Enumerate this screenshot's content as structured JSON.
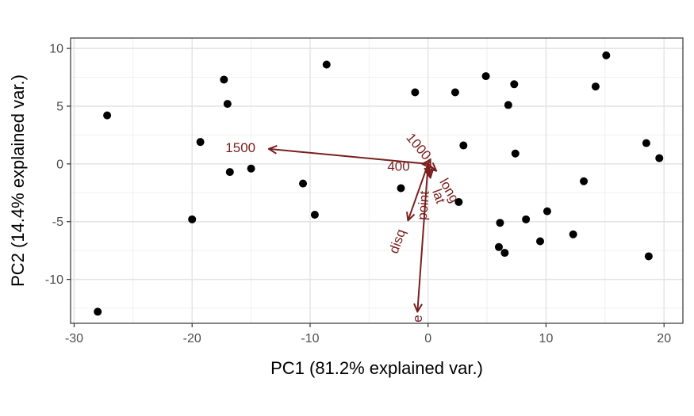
{
  "chart_data": {
    "type": "scatter",
    "title": "",
    "xlabel": "PC1 (81.2% explained var.)",
    "ylabel": "PC2 (14.4% explained var.)",
    "xlim": [
      -30.3,
      21.6
    ],
    "ylim": [
      -13.8,
      10.9
    ],
    "xticks": [
      -30,
      -20,
      -10,
      0,
      10,
      20
    ],
    "yticks": [
      -10,
      -5,
      0,
      5,
      10
    ],
    "grid": true,
    "point_color": "#000000",
    "vector_color": "#7a1e1e",
    "points": [
      {
        "x": -27.2,
        "y": 4.2
      },
      {
        "x": -28.0,
        "y": -12.8
      },
      {
        "x": -17.3,
        "y": 7.3
      },
      {
        "x": -17.0,
        "y": 5.2
      },
      {
        "x": -19.3,
        "y": 1.9
      },
      {
        "x": -16.8,
        "y": -0.7
      },
      {
        "x": -15.0,
        "y": -0.4
      },
      {
        "x": -20.0,
        "y": -4.8
      },
      {
        "x": -8.6,
        "y": 8.6
      },
      {
        "x": -10.6,
        "y": -1.7
      },
      {
        "x": -9.6,
        "y": -4.4
      },
      {
        "x": -2.3,
        "y": -2.1
      },
      {
        "x": -1.1,
        "y": 6.2
      },
      {
        "x": 2.3,
        "y": 6.2
      },
      {
        "x": 3.0,
        "y": 1.6
      },
      {
        "x": 2.6,
        "y": -3.3
      },
      {
        "x": 4.9,
        "y": 7.6
      },
      {
        "x": 7.3,
        "y": 6.9
      },
      {
        "x": 6.8,
        "y": 5.1
      },
      {
        "x": 7.4,
        "y": 0.9
      },
      {
        "x": 6.1,
        "y": -5.1
      },
      {
        "x": 6.0,
        "y": -7.2
      },
      {
        "x": 6.5,
        "y": -7.7
      },
      {
        "x": 8.3,
        "y": -4.8
      },
      {
        "x": 9.5,
        "y": -6.7
      },
      {
        "x": 10.1,
        "y": -4.1
      },
      {
        "x": 12.3,
        "y": -6.1
      },
      {
        "x": 13.2,
        "y": -1.5
      },
      {
        "x": 14.2,
        "y": 6.7
      },
      {
        "x": 15.1,
        "y": 9.4
      },
      {
        "x": 18.5,
        "y": 1.8
      },
      {
        "x": 19.6,
        "y": 0.5
      },
      {
        "x": 18.7,
        "y": -8.0
      }
    ],
    "vectors": [
      {
        "label": "1500",
        "x": -13.5,
        "y": 1.3,
        "label_x": -15.9,
        "label_y": 1.4,
        "rotate": 0
      },
      {
        "label": "400",
        "x": -0.5,
        "y": 0.0,
        "label_x": -2.5,
        "label_y": -0.2,
        "rotate": 0
      },
      {
        "label": "1000",
        "x": 0.2,
        "y": 0.4,
        "label_x": -0.8,
        "label_y": 1.5,
        "rotate": 50
      },
      {
        "label": "long",
        "x": 0.7,
        "y": -0.6,
        "label_x": 1.8,
        "label_y": -2.3,
        "rotate": 60
      },
      {
        "label": "lat",
        "x": 0.2,
        "y": -1.2,
        "label_x": 0.9,
        "label_y": -2.8,
        "rotate": 70
      },
      {
        "label": "point",
        "x": 0.1,
        "y": -1.0,
        "label_x": -0.4,
        "label_y": -3.6,
        "rotate": -85
      },
      {
        "label": "disq",
        "x": -1.7,
        "y": -4.9,
        "label_x": -2.6,
        "label_y": -6.7,
        "rotate": -70
      },
      {
        "label": "e",
        "x": -0.9,
        "y": -12.8,
        "label_x": -0.9,
        "label_y": -13.4,
        "rotate": -90
      }
    ]
  }
}
